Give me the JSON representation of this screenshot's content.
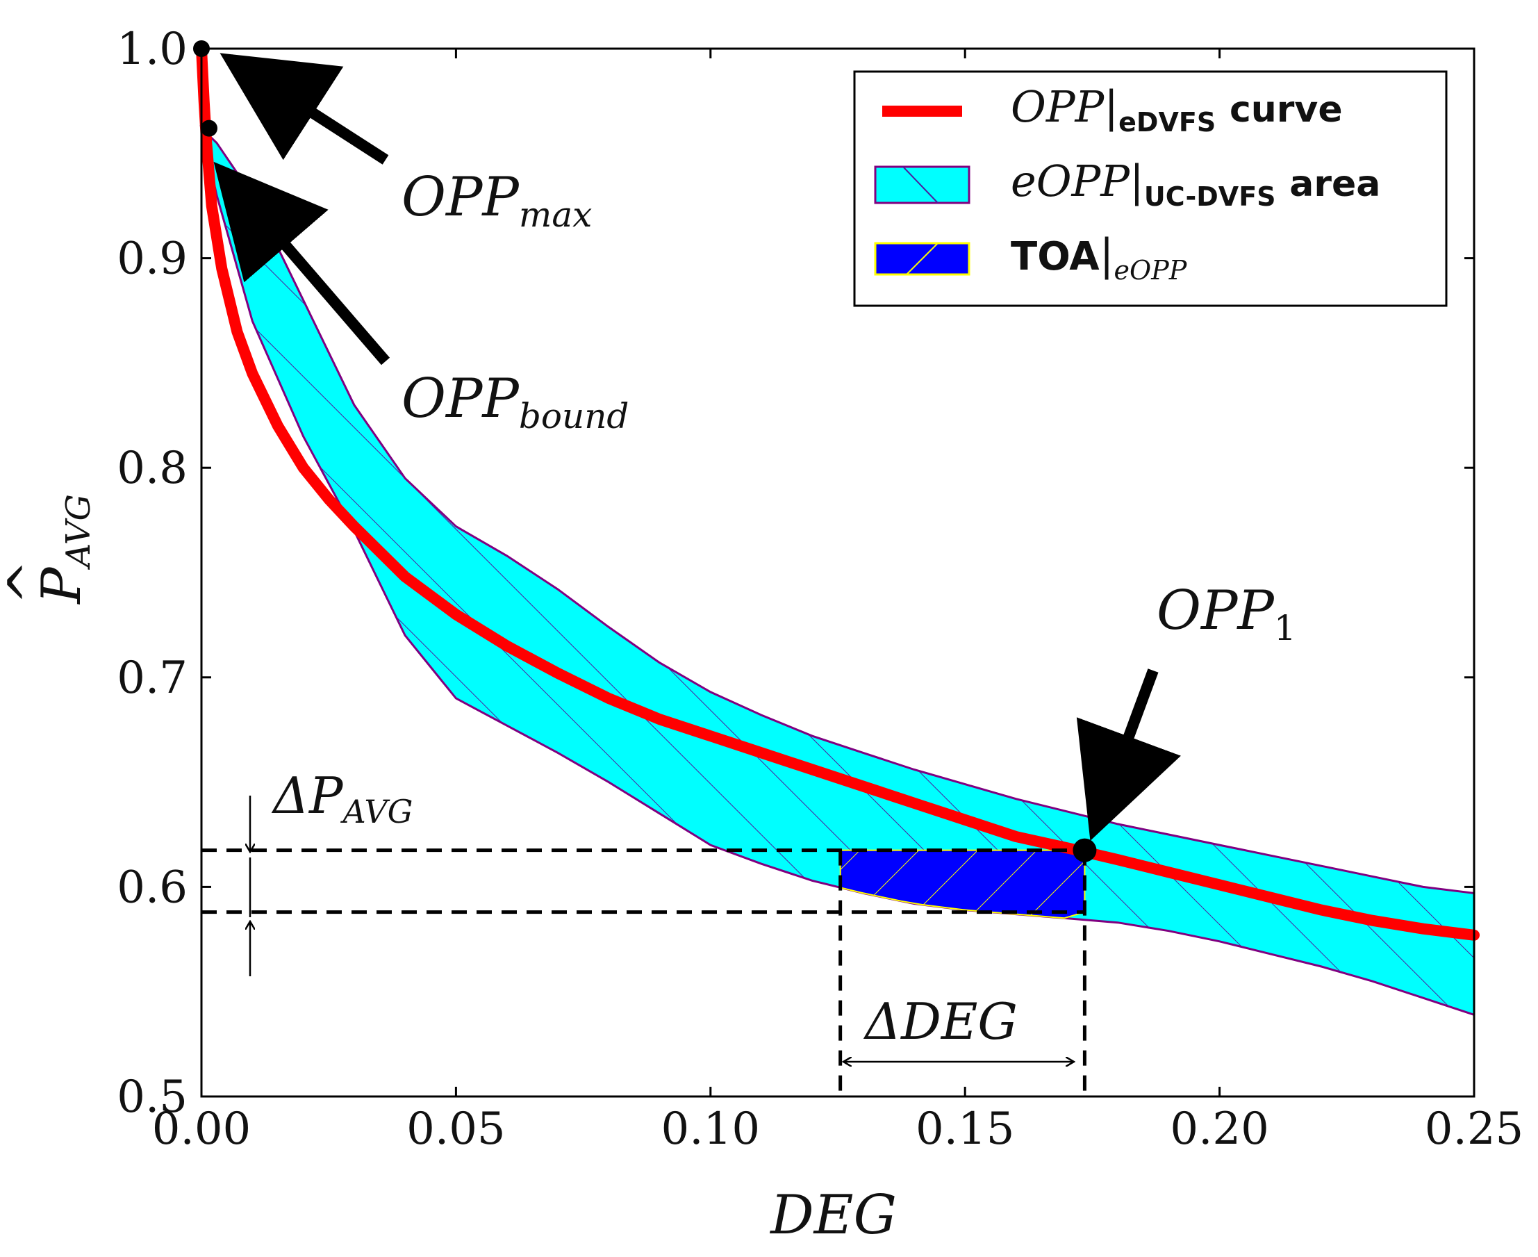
{
  "chart_data": {
    "type": "line",
    "xlabel": "DEG",
    "ylabel_base": "P",
    "ylabel_hat": "^",
    "ylabel_sub": "AVG",
    "xlim": [
      0.0,
      0.25
    ],
    "ylim": [
      0.5,
      1.0
    ],
    "x_ticks": [
      0.0,
      0.05,
      0.1,
      0.15,
      0.2,
      0.25
    ],
    "x_tick_labels": [
      "0.00",
      "0.05",
      "0.10",
      "0.15",
      "0.20",
      "0.25"
    ],
    "y_ticks": [
      0.5,
      0.6,
      0.7,
      0.8,
      0.9,
      1.0
    ],
    "y_tick_labels": [
      "0.5",
      "0.6",
      "0.7",
      "0.8",
      "0.9",
      "1.0"
    ],
    "series": [
      {
        "name": "OPP|eDVFS curve",
        "color": "#ff0000",
        "x": [
          0.0,
          0.0005,
          0.001,
          0.002,
          0.004,
          0.007,
          0.01,
          0.015,
          0.02,
          0.025,
          0.03,
          0.035,
          0.04,
          0.05,
          0.06,
          0.07,
          0.08,
          0.09,
          0.1,
          0.11,
          0.12,
          0.13,
          0.14,
          0.15,
          0.16,
          0.173,
          0.18,
          0.19,
          0.2,
          0.21,
          0.22,
          0.23,
          0.24,
          0.25
        ],
        "y": [
          1.0,
          0.975,
          0.955,
          0.925,
          0.895,
          0.865,
          0.845,
          0.82,
          0.8,
          0.785,
          0.772,
          0.76,
          0.748,
          0.73,
          0.715,
          0.702,
          0.69,
          0.68,
          0.672,
          0.664,
          0.656,
          0.648,
          0.64,
          0.632,
          0.624,
          0.617,
          0.613,
          0.607,
          0.601,
          0.595,
          0.589,
          0.584,
          0.58,
          0.577
        ]
      }
    ],
    "area": {
      "name": "eOPP|UC-DVFS area",
      "fill": "#00ffff",
      "edge": "#800080",
      "x": [
        0.0,
        0.003,
        0.01,
        0.02,
        0.03,
        0.04,
        0.05,
        0.06,
        0.07,
        0.08,
        0.09,
        0.1,
        0.11,
        0.12,
        0.13,
        0.14,
        0.15,
        0.16,
        0.17,
        0.18,
        0.19,
        0.2,
        0.21,
        0.22,
        0.23,
        0.24,
        0.25
      ],
      "upper": [
        0.962,
        0.955,
        0.93,
        0.88,
        0.83,
        0.795,
        0.772,
        0.758,
        0.742,
        0.724,
        0.707,
        0.693,
        0.682,
        0.672,
        0.664,
        0.656,
        0.649,
        0.642,
        0.636,
        0.63,
        0.625,
        0.62,
        0.615,
        0.61,
        0.605,
        0.6,
        0.597
      ],
      "lower": [
        0.962,
        0.93,
        0.87,
        0.815,
        0.77,
        0.72,
        0.69,
        0.677,
        0.664,
        0.65,
        0.635,
        0.62,
        0.611,
        0.603,
        0.597,
        0.592,
        0.589,
        0.587,
        0.585,
        0.583,
        0.579,
        0.574,
        0.568,
        0.562,
        0.555,
        0.547,
        0.539
      ]
    },
    "toa": {
      "name": "TOA|eOPP",
      "fill": "#0000ff",
      "edge": "#ffff00",
      "x_left": 0.1255,
      "x_right": 0.1735,
      "y_top": 0.6175,
      "y_bottom": 0.588
    },
    "points": [
      {
        "name": "OPP_max",
        "x": 0.0,
        "y": 1.0
      },
      {
        "name": "OPP_bound",
        "x": 0.0015,
        "y": 0.962
      },
      {
        "name": "OPP_1",
        "x": 0.1735,
        "y": 0.6175
      }
    ],
    "annotations": {
      "opp_max": {
        "base": "OPP",
        "sub": "max"
      },
      "opp_bound": {
        "base": "OPP",
        "sub": "bound"
      },
      "opp_1": {
        "base": "OPP",
        "sub": "1"
      },
      "delta_p": {
        "base": "ΔP",
        "sub": "AVG"
      },
      "delta_deg": {
        "text": "ΔDEG"
      }
    },
    "legend": {
      "position": "top-right",
      "entries": [
        {
          "base": "OPP",
          "sub": "eDVFS",
          "suffix": "curve"
        },
        {
          "base": "eOPP",
          "sub": "UC-DVFS",
          "suffix": "area"
        },
        {
          "base": "TOA",
          "sub": "eOPP",
          "suffix": ""
        }
      ]
    }
  }
}
